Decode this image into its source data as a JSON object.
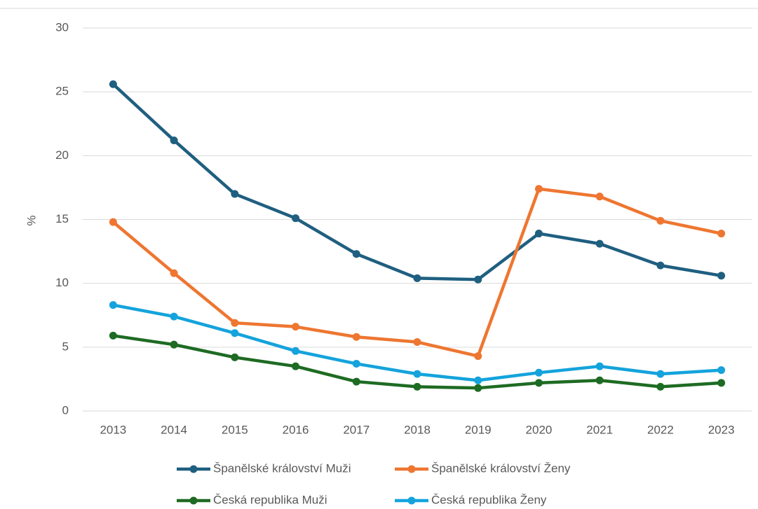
{
  "chart_data": {
    "type": "line",
    "ylabel": "%",
    "categories": [
      "2013",
      "2014",
      "2015",
      "2016",
      "2017",
      "2018",
      "2019",
      "2020",
      "2021",
      "2022",
      "2023"
    ],
    "series": [
      {
        "name": "Španělské království Muži",
        "color": "#1f5f80",
        "values": [
          25.6,
          21.2,
          17.0,
          15.1,
          12.3,
          10.4,
          10.3,
          13.9,
          13.1,
          11.4,
          10.6
        ]
      },
      {
        "name": "Španělské království Ženy",
        "color": "#ee7631",
        "values": [
          14.8,
          10.8,
          6.9,
          6.6,
          5.8,
          5.4,
          4.3,
          17.4,
          16.8,
          14.9,
          13.9
        ]
      },
      {
        "name": "Česká republika Muži",
        "color": "#1e6b23",
        "values": [
          5.9,
          5.2,
          4.2,
          3.5,
          2.3,
          1.9,
          1.8,
          2.2,
          2.4,
          1.9,
          2.2
        ]
      },
      {
        "name": "Česká republika Ženy",
        "color": "#14a3dc",
        "values": [
          8.3,
          7.4,
          6.1,
          4.7,
          3.7,
          2.9,
          2.4,
          3.0,
          3.5,
          2.9,
          3.2
        ]
      }
    ],
    "ylim": [
      0,
      30
    ],
    "yticks": [
      0,
      5,
      10,
      15,
      20,
      25,
      30
    ],
    "grid": true
  }
}
